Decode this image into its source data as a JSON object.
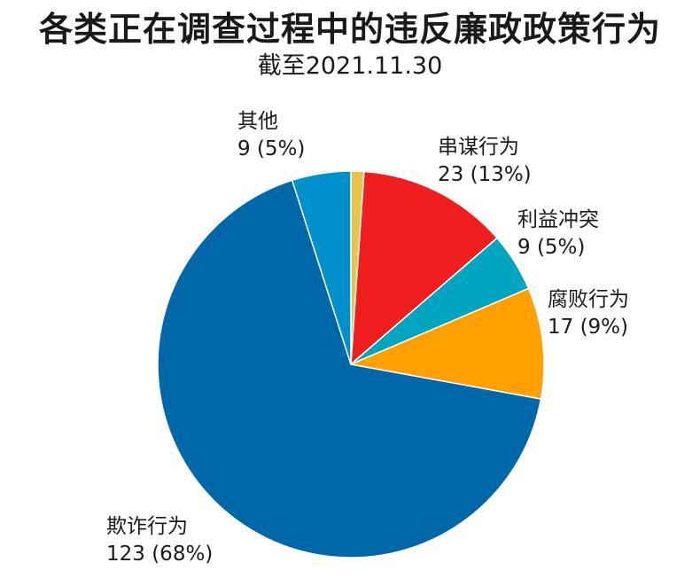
{
  "chart_data": {
    "type": "pie",
    "title": "各类正在调查过程中的违反廉政政策行为",
    "subtitle": "截至2021.11.30",
    "slices": [
      {
        "name": "",
        "value": 2,
        "color": "#e8c547"
      },
      {
        "name": "串谋行为",
        "value": 23,
        "pct": "13%",
        "color": "#f01e1e"
      },
      {
        "name": "利益冲突",
        "value": 9,
        "pct": "5%",
        "color": "#00a6c0"
      },
      {
        "name": "腐败行为",
        "value": 17,
        "pct": "9%",
        "color": "#ff9f00"
      },
      {
        "name": "欺诈行为",
        "value": 123,
        "pct": "68%",
        "color": "#0068a8"
      },
      {
        "name": "其他",
        "value": 9,
        "pct": "5%",
        "color": "#0090cc"
      }
    ],
    "labels": {
      "collusion": {
        "name": "串谋行为",
        "value_text": "23 (13%)"
      },
      "conflict": {
        "name": "利益冲突",
        "value_text": "9 (5%)"
      },
      "corruption": {
        "name": "腐败行为",
        "value_text": "17 (9%)"
      },
      "fraud": {
        "name": "欺诈行为",
        "value_text": "123 (68%)"
      },
      "other": {
        "name": "其他",
        "value_text": "9 (5%)"
      }
    }
  }
}
